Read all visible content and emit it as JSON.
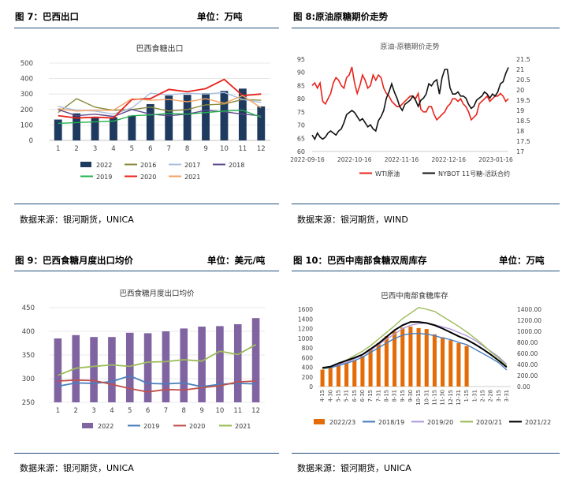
{
  "panels": {
    "p7": {
      "title": "图 7：巴西出口",
      "unit": "单位：万吨",
      "source": "数据来源：银河期货，UNICA"
    },
    "p8": {
      "title": "图 8:原油原糖期价走势",
      "unit": "",
      "source": "数据来源：银河期货，WIND"
    },
    "p9": {
      "title": "图 9：巴西食糖月度出口均价",
      "unit": "单位：美元/吨",
      "source": "数据来源：银河期货，UNICA"
    },
    "p10": {
      "title": "图 10：巴西中南部食糖双周库存",
      "unit": "单位：万吨",
      "source": "数据来源：银河期货，UNICA"
    }
  },
  "chart_data": [
    {
      "type": "bar",
      "title": "巴西食糖出口",
      "categories": [
        "1",
        "2",
        "3",
        "4",
        "5",
        "6",
        "7",
        "8",
        "9",
        "10",
        "11",
        "12"
      ],
      "ylim": [
        0,
        500
      ],
      "yticks": [
        "0",
        "100",
        "200",
        "300",
        "400",
        "500"
      ],
      "bar_series": {
        "name": "2022",
        "color": "#1f3a5f",
        "values": [
          135,
          175,
          145,
          150,
          160,
          235,
          290,
          295,
          305,
          320,
          335,
          220
        ]
      },
      "line_series": [
        {
          "name": "2016",
          "color": "#8a8a3a",
          "values": [
            180,
            270,
            215,
            195,
            200,
            215,
            190,
            200,
            230,
            235,
            265,
            260
          ]
        },
        {
          "name": "2017",
          "color": "#a9bfe0",
          "values": [
            220,
            195,
            190,
            170,
            210,
            305,
            295,
            305,
            300,
            310,
            265,
            245
          ]
        },
        {
          "name": "2018",
          "color": "#5d4a8a",
          "values": [
            200,
            160,
            170,
            155,
            200,
            170,
            160,
            170,
            195,
            185,
            170,
            160
          ]
        },
        {
          "name": "2019",
          "color": "#22b14c",
          "values": [
            110,
            115,
            120,
            125,
            160,
            165,
            175,
            170,
            180,
            190,
            195,
            150
          ]
        },
        {
          "name": "2020",
          "color": "#e8231b",
          "values": [
            160,
            145,
            150,
            145,
            265,
            270,
            330,
            315,
            335,
            395,
            290,
            300
          ]
        },
        {
          "name": "2021",
          "color": "#f4a261",
          "values": [
            205,
            190,
            195,
            195,
            270,
            260,
            265,
            250,
            270,
            240,
            290,
            210
          ]
        }
      ],
      "legend": [
        "2022",
        "2016",
        "2017",
        "2018",
        "2019",
        "2020",
        "2021"
      ]
    },
    {
      "type": "line",
      "title": "原油-原糖期价走势",
      "x_labels": [
        "2022-09-16",
        "2022-10-16",
        "2022-11-16",
        "2022-12-16",
        "2023-01-16"
      ],
      "ylim_left": [
        60,
        95
      ],
      "yticks_left": [
        "60",
        "65",
        "70",
        "75",
        "80",
        "85",
        "90",
        "95"
      ],
      "ylim_right": [
        17,
        21.5
      ],
      "yticks_right": [
        "17",
        "17.5",
        "18",
        "18.5",
        "19",
        "19.5",
        "20",
        "20.5",
        "21",
        "21.5"
      ],
      "series": [
        {
          "name": "WTI原油",
          "axis": "left",
          "color": "#e8231b",
          "values": [
            85,
            86,
            84,
            86,
            79,
            78,
            80,
            82,
            86,
            88,
            87,
            85,
            84,
            88,
            89,
            92,
            86,
            82,
            85,
            89,
            87,
            84,
            85,
            89,
            87,
            89,
            88,
            84,
            82,
            81,
            79,
            78,
            77,
            77,
            78,
            79,
            80,
            81,
            81,
            80,
            82,
            76,
            75,
            75,
            77,
            77,
            74,
            72,
            73,
            74,
            75,
            77,
            78,
            80,
            80,
            79,
            80,
            78,
            77,
            75,
            72,
            73,
            74,
            78,
            79,
            80,
            81,
            79,
            80,
            81,
            81,
            82,
            81,
            79,
            80
          ]
        },
        {
          "name": "NYBOT 11号糖-活跃合约",
          "axis": "right",
          "color": "#111111",
          "values": [
            17.8,
            17.6,
            17.9,
            17.7,
            17.6,
            17.7,
            17.9,
            18.0,
            17.9,
            17.8,
            18.0,
            18.1,
            18.4,
            18.8,
            18.9,
            19.0,
            18.9,
            18.7,
            18.5,
            18.6,
            18.4,
            18.2,
            18.3,
            18.1,
            18.0,
            18.5,
            18.7,
            19.0,
            19.6,
            19.9,
            20.3,
            19.9,
            19.6,
            19.2,
            19.0,
            19.3,
            19.4,
            19.5,
            19.7,
            19.5,
            19.2,
            19.5,
            19.6,
            19.8,
            20.3,
            20.2,
            20.4,
            20.5,
            19.8,
            20.6,
            21.0,
            21.0,
            20.1,
            19.8,
            19.8,
            19.9,
            19.7,
            19.7,
            19.6,
            19.3,
            19.1,
            19.2,
            19.5,
            19.6,
            19.7,
            19.9,
            19.8,
            19.6,
            19.8,
            19.7,
            19.9,
            20.3,
            20.4,
            20.8,
            21.1
          ]
        }
      ],
      "legend": [
        "WTI原油",
        "NYBOT 11号糖-活跃合约"
      ]
    },
    {
      "type": "bar",
      "title": "巴西食糖月度出口均价",
      "categories": [
        "1",
        "2",
        "3",
        "4",
        "5",
        "6",
        "7",
        "8",
        "9",
        "10",
        "11",
        "12"
      ],
      "ylim": [
        250,
        450
      ],
      "yticks": [
        "250",
        "300",
        "350",
        "400",
        "450"
      ],
      "bar_series": {
        "name": "2022",
        "color": "#8064a2",
        "values": [
          385,
          392,
          388,
          388,
          397,
          396,
          400,
          406,
          410,
          411,
          415,
          428
        ]
      },
      "line_series": [
        {
          "name": "2019",
          "color": "#4a7ebb",
          "values": [
            284,
            291,
            290,
            294,
            306,
            290,
            289,
            291,
            283,
            288,
            290,
            289
          ]
        },
        {
          "name": "2020",
          "color": "#c0504d",
          "values": [
            295,
            297,
            296,
            288,
            279,
            272,
            277,
            276,
            281,
            285,
            293,
            295
          ]
        },
        {
          "name": "2021",
          "color": "#9bbb59",
          "values": [
            307,
            322,
            326,
            329,
            326,
            335,
            336,
            340,
            337,
            358,
            351,
            372
          ]
        }
      ],
      "legend": [
        "2022",
        "2019",
        "2020",
        "2021"
      ]
    },
    {
      "type": "bar",
      "title": "巴西中南部食糖库存",
      "categories": [
        "4-15",
        "4-30",
        "5-15",
        "5-31",
        "6-15",
        "6-30",
        "7-15",
        "7-31",
        "8-15",
        "8-31",
        "9-15",
        "9-30",
        "10-15",
        "10-31",
        "11-15",
        "11-30",
        "12-15",
        "12-31",
        "1-15",
        "1-31",
        "2-15",
        "2-28",
        "3-15",
        "3-31"
      ],
      "ylim_left": [
        0,
        1600
      ],
      "yticks_left": [
        "0",
        "200",
        "400",
        "600",
        "800",
        "1000",
        "1200",
        "1400",
        "1600"
      ],
      "ylim_right": [
        0,
        1400
      ],
      "yticks_right": [
        "0.00",
        "200.00",
        "400.00",
        "600.00",
        "800.00",
        "1000.00",
        "1200.00",
        "1400.00"
      ],
      "bar_series": {
        "name": "2022/23",
        "color": "#e36c09",
        "values": [
          350,
          390,
          440,
          490,
          540,
          630,
          780,
          900,
          1040,
          1140,
          1220,
          1240,
          1210,
          1190,
          1080,
          1020,
          960,
          900,
          840
        ]
      },
      "line_series": [
        {
          "name": "2018/19",
          "color": "#4a7ebb",
          "values": [
            320,
            340,
            380,
            420,
            470,
            530,
            620,
            700,
            790,
            870,
            930,
            960,
            960,
            950,
            920,
            880,
            850,
            800,
            760,
            680,
            600,
            520,
            430,
            300
          ]
        },
        {
          "name": "2019/20",
          "color": "#b19cd9",
          "values": [
            330,
            360,
            400,
            440,
            500,
            570,
            660,
            760,
            860,
            950,
            1050,
            1110,
            1140,
            1150,
            1120,
            1080,
            1040,
            980,
            920,
            840,
            740,
            640,
            540,
            400
          ]
        },
        {
          "name": "2020/21",
          "color": "#9bbb59",
          "values": [
            320,
            360,
            420,
            480,
            560,
            640,
            740,
            860,
            980,
            1100,
            1230,
            1330,
            1430,
            1400,
            1360,
            1270,
            1180,
            1090,
            990,
            880,
            760,
            630,
            510,
            370
          ]
        },
        {
          "name": "2021/22",
          "color": "#000000",
          "values": [
            340,
            360,
            420,
            470,
            520,
            580,
            680,
            780,
            900,
            1020,
            1110,
            1170,
            1170,
            1150,
            1110,
            1050,
            980,
            910,
            850,
            770,
            680,
            580,
            470,
            350
          ]
        }
      ],
      "legend": [
        "2022/23",
        "2018/19",
        "2019/20",
        "2020/21",
        "2021/22"
      ]
    }
  ]
}
